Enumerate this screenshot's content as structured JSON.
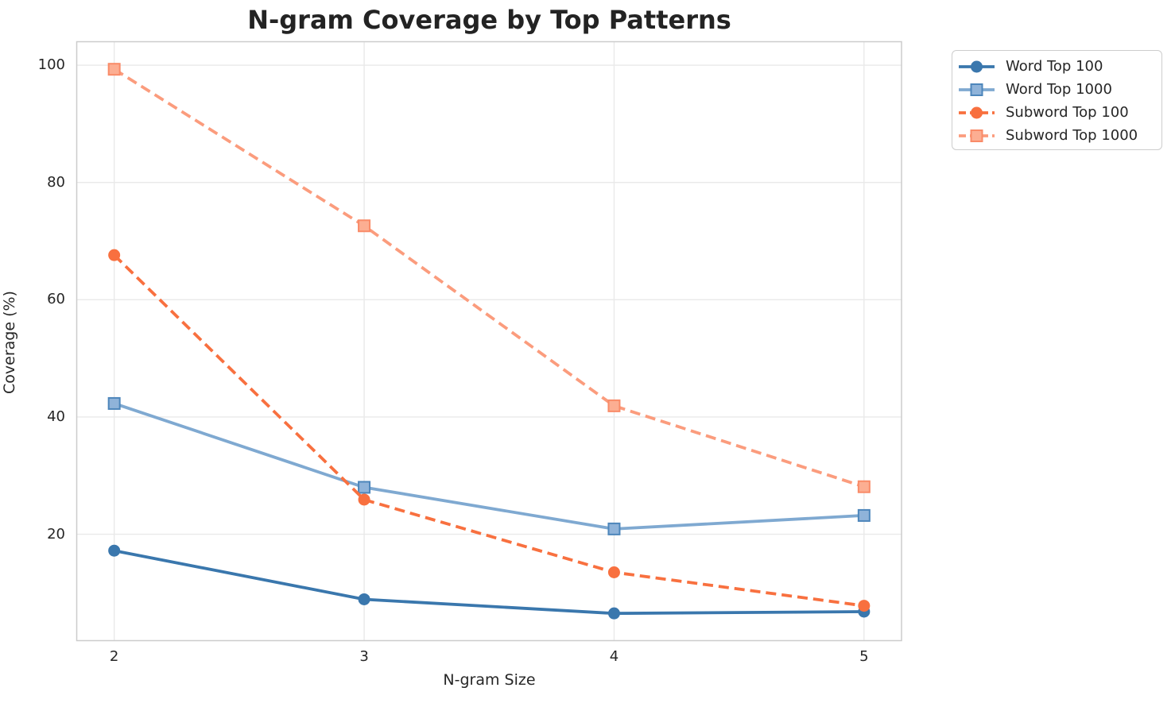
{
  "chart_data": {
    "type": "line",
    "title": "N-gram Coverage by Top Patterns",
    "xlabel": "N-gram Size",
    "ylabel": "Coverage (%)",
    "x": [
      2,
      3,
      4,
      5
    ],
    "xticks": [
      "2",
      "3",
      "4",
      "5"
    ],
    "yticks": [
      "20",
      "40",
      "60",
      "80",
      "100"
    ],
    "ytick_values": [
      20,
      40,
      60,
      80,
      100
    ],
    "xtick_values": [
      2,
      3,
      4,
      5
    ],
    "xlim": [
      1.85,
      5.15
    ],
    "ylim": [
      1.85,
      104.0
    ],
    "grid": true,
    "legend_position": "outside-upper-right",
    "series": [
      {
        "name": "Word Top 100",
        "values": [
          17.2,
          8.9,
          6.5,
          6.8
        ],
        "color": "#3a77ad",
        "marker": "circle",
        "marker_fill": "#3a77ad",
        "marker_edge": "#3a77ad",
        "line_style": "solid"
      },
      {
        "name": "Word Top 1000",
        "values": [
          42.3,
          28.0,
          20.9,
          23.2
        ],
        "color": "#7fa9d1",
        "marker": "square",
        "marker_fill": "#8fb3d9",
        "marker_edge": "#4d86bb",
        "line_style": "solid"
      },
      {
        "name": "Subword Top 100",
        "values": [
          67.6,
          25.9,
          13.5,
          7.8
        ],
        "color": "#f8703f",
        "marker": "circle",
        "marker_fill": "#f8703f",
        "marker_edge": "#f8703f",
        "line_style": "dashed"
      },
      {
        "name": "Subword Top 1000",
        "values": [
          99.3,
          72.6,
          41.9,
          28.1
        ],
        "color": "#fb9c7d",
        "marker": "square",
        "marker_fill": "#fcae92",
        "marker_edge": "#f98b68",
        "line_style": "dashed"
      }
    ],
    "colors": {
      "grid": "#e9e9e9",
      "spine": "#cccccc",
      "text": "#262626",
      "title": "#232323",
      "background": "#ffffff"
    }
  }
}
